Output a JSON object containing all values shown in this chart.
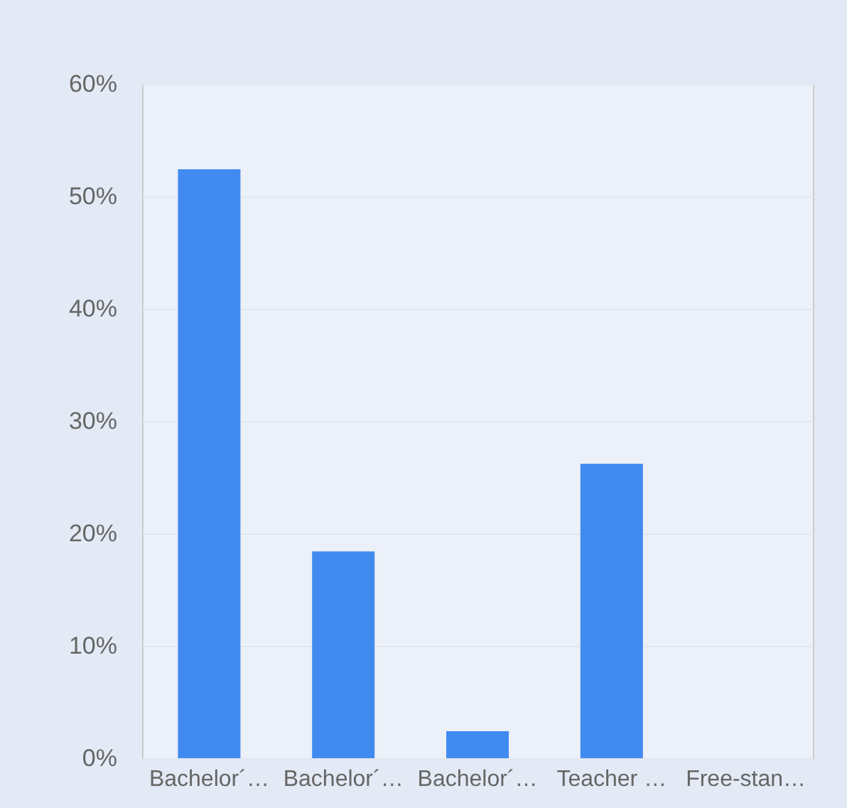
{
  "chart_data": {
    "type": "bar",
    "categories": [
      "Bachelor´…",
      "Bachelor´…",
      "Bachelor´…",
      "Teacher …",
      "Free-stan…"
    ],
    "values": [
      52.4,
      18.4,
      2.4,
      26.2,
      0
    ],
    "color": "#418bf0",
    "ylim": [
      0,
      60
    ],
    "yticks": [
      {
        "value": 0,
        "label": "0%"
      },
      {
        "value": 10,
        "label": "10%"
      },
      {
        "value": 20,
        "label": "20%"
      },
      {
        "value": 30,
        "label": "30%"
      },
      {
        "value": 40,
        "label": "40%"
      },
      {
        "value": 50,
        "label": "50%"
      },
      {
        "value": 60,
        "label": "60%"
      }
    ],
    "grid": "y"
  }
}
